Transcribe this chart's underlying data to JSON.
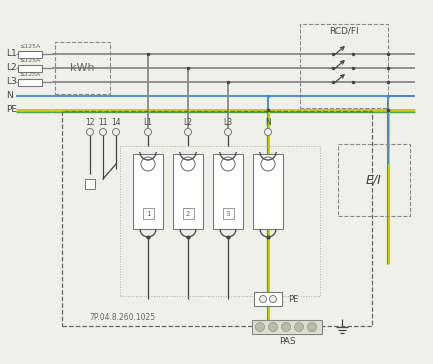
{
  "bg_color": "#f0f0eb",
  "gray": "#888888",
  "dark": "#444444",
  "blue": "#4488cc",
  "yellow": "#cccc00",
  "green": "#44aa44",
  "fuse_labels": [
    "≤125A",
    "≤125A",
    "≤125A"
  ],
  "rcd_label": "RCD/FI",
  "kwh_label": "kWh",
  "ei_label": "E/I",
  "pas_label": "PAS",
  "bottom_label": "7P.04.8.260.1025",
  "pe_label": "PE",
  "phase_labels": [
    "L1",
    "L2",
    "L3",
    "N",
    "PE"
  ],
  "terminal_labels": [
    "12",
    "11",
    "14",
    "L1",
    "L2",
    "L3",
    "N"
  ]
}
